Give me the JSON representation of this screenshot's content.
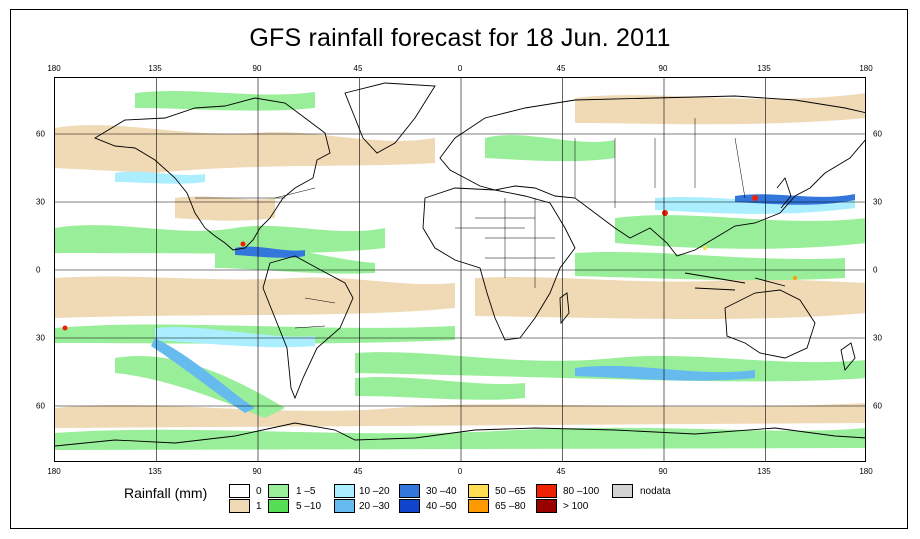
{
  "title": "GFS rainfall forecast for 18 Jun. 2011",
  "axes": {
    "longitude_labels": [
      "180",
      "135",
      "90",
      "45",
      "0",
      "45",
      "90",
      "135",
      "180"
    ],
    "latitude_labels": [
      "60",
      "30",
      "0",
      "30",
      "60"
    ]
  },
  "legend": {
    "title": "Rainfall (mm)",
    "items": [
      {
        "label": "0",
        "color": "#ffffff"
      },
      {
        "label": "1",
        "color": "#f0d9b5"
      },
      {
        "label": "1 –5",
        "color": "#99ee99"
      },
      {
        "label": "5 –10",
        "color": "#55dd55"
      },
      {
        "label": "10 –20",
        "color": "#aaeeff"
      },
      {
        "label": "20 –30",
        "color": "#66bbee"
      },
      {
        "label": "30 –40",
        "color": "#3377dd"
      },
      {
        "label": "40 –50",
        "color": "#1144cc"
      },
      {
        "label": "50 –65",
        "color": "#ffdd55"
      },
      {
        "label": "65 –80",
        "color": "#ff9900"
      },
      {
        "label": "80 –100",
        "color": "#ee2200"
      },
      {
        "label": "> 100",
        "color": "#990000"
      },
      {
        "label": "nodata",
        "color": "#d3d3d3"
      }
    ]
  }
}
